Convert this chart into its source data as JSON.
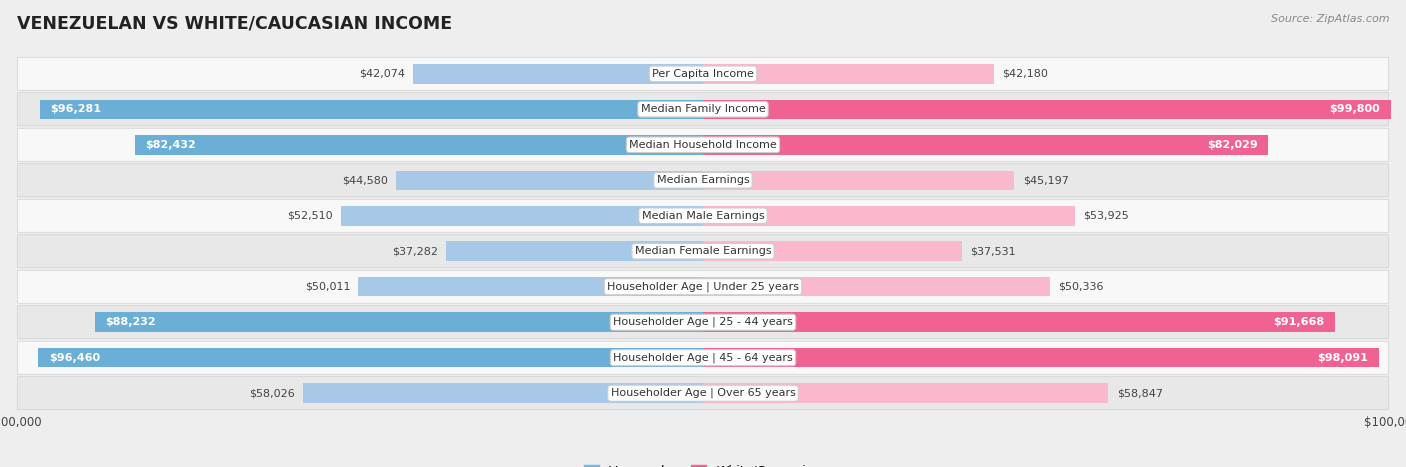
{
  "title": "VENEZUELAN VS WHITE/CAUCASIAN INCOME",
  "source": "Source: ZipAtlas.com",
  "categories": [
    "Per Capita Income",
    "Median Family Income",
    "Median Household Income",
    "Median Earnings",
    "Median Male Earnings",
    "Median Female Earnings",
    "Householder Age | Under 25 years",
    "Householder Age | 25 - 44 years",
    "Householder Age | 45 - 64 years",
    "Householder Age | Over 65 years"
  ],
  "venezuelan": [
    42074,
    96281,
    82432,
    44580,
    52510,
    37282,
    50011,
    88232,
    96460,
    58026
  ],
  "white_caucasian": [
    42180,
    99800,
    82029,
    45197,
    53925,
    37531,
    50336,
    91668,
    98091,
    58847
  ],
  "venezuelan_labels": [
    "$42,074",
    "$96,281",
    "$82,432",
    "$44,580",
    "$52,510",
    "$37,282",
    "$50,011",
    "$88,232",
    "$96,460",
    "$58,026"
  ],
  "white_labels": [
    "$42,180",
    "$99,800",
    "$82,029",
    "$45,197",
    "$53,925",
    "$37,531",
    "$50,336",
    "$91,668",
    "$98,091",
    "$58,847"
  ],
  "max_value": 100000,
  "venezuelan_color_light": "#a8c8e8",
  "venezuelan_color_dark": "#6baed6",
  "white_color_light": "#f9b8cc",
  "white_color_dark": "#f06292",
  "bg_color": "#eeeeee",
  "row_bg_even": "#f8f8f8",
  "row_bg_odd": "#e8e8e8",
  "row_border_color": "#d0d0d0",
  "label_dark": "#444444",
  "label_white": "#ffffff",
  "center_box_bg": "#ffffff",
  "center_box_border": "#cccccc",
  "title_color": "#222222",
  "source_color": "#888888",
  "legend_ven_color": "#7ab8d8",
  "legend_whi_color": "#f06292",
  "ven_threshold": 60000,
  "whi_threshold": 60000
}
